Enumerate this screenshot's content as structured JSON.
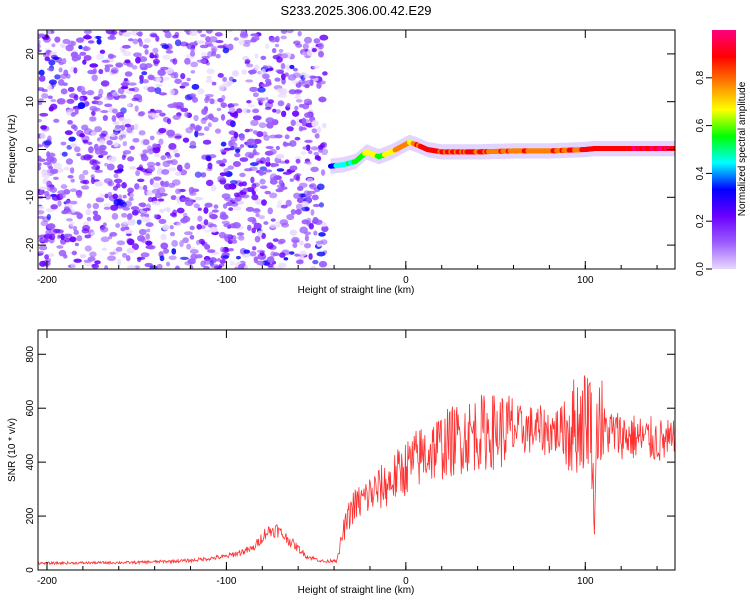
{
  "title": "S233.2025.306.00.42.E29",
  "chart_data": [
    {
      "type": "heatmap",
      "title": "S233.2025.306.00.42.E29",
      "xlabel": "Height of straight line (km)",
      "ylabel": "Frequency (Hz)",
      "xlim": [
        -205,
        150
      ],
      "ylim": [
        -25,
        25
      ],
      "xticks": [
        -200,
        -100,
        0,
        100
      ],
      "yticks": [
        -20,
        -10,
        0,
        10,
        20
      ],
      "colorbar": {
        "label": "Normalized spectral amplitude",
        "range": [
          0,
          1
        ],
        "ticks": [
          "0.0",
          "0.2",
          "0.4",
          "0.6",
          "0.8"
        ],
        "colors": [
          "#e8d8ff",
          "#9b5cff",
          "#6a00ff",
          "#0000ff",
          "#00ffff",
          "#00ff00",
          "#ffff00",
          "#ff8000",
          "#ff0000",
          "#ff0080"
        ]
      },
      "ridge": {
        "x": [
          -42,
          -35,
          -28,
          -22,
          -15,
          -8,
          -3,
          2,
          6,
          12,
          20,
          40,
          60,
          80,
          100,
          105,
          150
        ],
        "freq": [
          -3.5,
          -3.2,
          -2.5,
          -0.5,
          -1.5,
          -0.5,
          0.5,
          1.5,
          1,
          0,
          -0.5,
          -0.5,
          -0.3,
          -0.3,
          0,
          0.2,
          0.2
        ],
        "amplitude": [
          0.35,
          0.45,
          0.5,
          0.65,
          0.6,
          0.7,
          0.75,
          0.7,
          0.8,
          0.9,
          0.85,
          0.85,
          0.8,
          0.8,
          0.85,
          0.9,
          0.95
        ]
      },
      "scatter_region": {
        "x_range": [
          -205,
          -45
        ],
        "freq_range": [
          -25,
          25
        ],
        "amplitude_range": [
          0.05,
          0.3
        ]
      }
    },
    {
      "type": "line",
      "xlabel": "Height of straight line (km)",
      "ylabel": "SNR (10 * v/v)",
      "xlim": [
        -205,
        150
      ],
      "ylim": [
        0,
        890
      ],
      "xticks": [
        -200,
        -100,
        0,
        100
      ],
      "yticks": [
        0,
        200,
        400,
        600,
        800
      ],
      "color": "#ff3030",
      "x": [
        -205,
        -150,
        -120,
        -100,
        -85,
        -78,
        -72,
        -65,
        -55,
        -45,
        -38,
        -35,
        -30,
        -20,
        -10,
        0,
        10,
        20,
        30,
        40,
        50,
        60,
        70,
        80,
        90,
        95,
        100,
        103,
        105,
        107,
        110,
        120,
        130,
        140,
        150
      ],
      "y": [
        25,
        28,
        35,
        50,
        80,
        140,
        150,
        110,
        50,
        30,
        40,
        140,
        230,
        280,
        320,
        380,
        430,
        460,
        490,
        510,
        515,
        520,
        520,
        515,
        520,
        540,
        560,
        600,
        180,
        600,
        520,
        500,
        490,
        480,
        470
      ]
    }
  ]
}
